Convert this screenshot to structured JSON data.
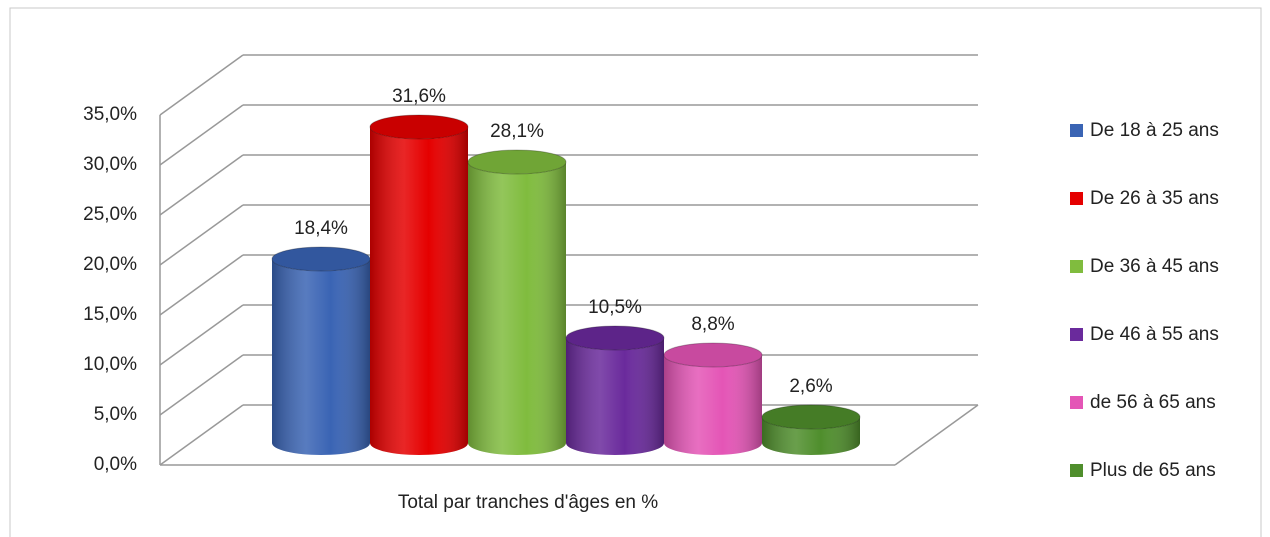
{
  "chart_data": {
    "type": "cylinder_bar",
    "categories": [
      "Total par tranches d'âges en %"
    ],
    "series": [
      {
        "name": "De 18 à 25 ans",
        "color": "#3a64b4",
        "values": [
          18.4
        ],
        "value_labels": [
          "18,4%"
        ]
      },
      {
        "name": "De 26 à 35 ans",
        "color": "#e50000",
        "values": [
          31.6
        ],
        "value_labels": [
          "31,6%"
        ]
      },
      {
        "name": "De 36 à 45 ans",
        "color": "#80bc3e",
        "values": [
          28.1
        ],
        "value_labels": [
          "28,1%"
        ]
      },
      {
        "name": "De 46 à 55 ans",
        "color": "#6a2a9c",
        "values": [
          10.5
        ],
        "value_labels": [
          "10,5%"
        ]
      },
      {
        "name": "de 56 à 65 ans",
        "color": "#e455b6",
        "values": [
          8.8
        ],
        "value_labels": [
          "8,8%"
        ]
      },
      {
        "name": "Plus de 65 ans",
        "color": "#4f8e2c",
        "values": [
          2.6
        ],
        "value_labels": [
          "2,6%"
        ]
      }
    ],
    "ylim": [
      0,
      35
    ],
    "yticks": [
      {
        "value": 0,
        "label": "0,0%"
      },
      {
        "value": 5,
        "label": "5,0%"
      },
      {
        "value": 10,
        "label": "10,0%"
      },
      {
        "value": 15,
        "label": "15,0%"
      },
      {
        "value": 20,
        "label": "20,0%"
      },
      {
        "value": 25,
        "label": "25,0%"
      },
      {
        "value": 30,
        "label": "30,0%"
      },
      {
        "value": 35,
        "label": "35,0%"
      }
    ],
    "grid": true,
    "legend": "right"
  }
}
